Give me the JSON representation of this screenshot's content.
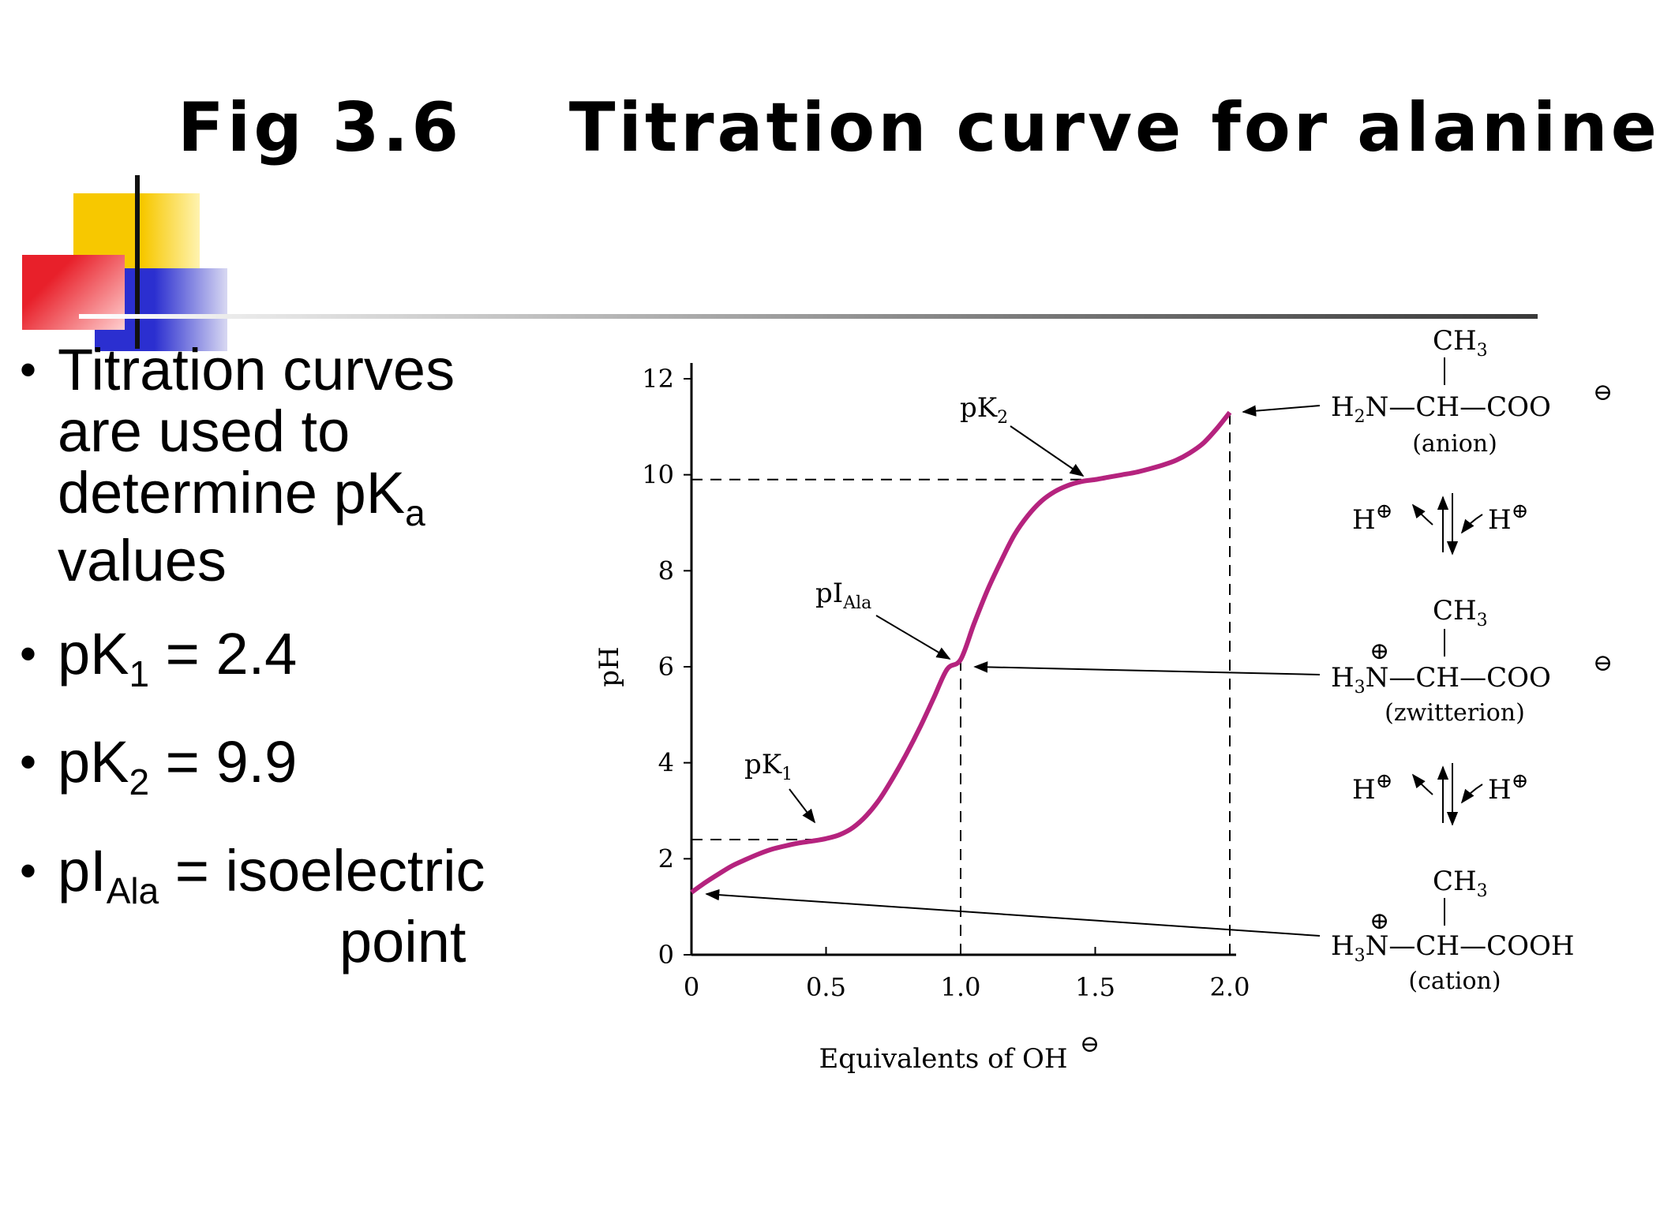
{
  "slide": {
    "title": "Fig 3.6    Titration curve for alanine",
    "bullets": {
      "b1_line1": "Titration curves",
      "b1_line2": "are used to",
      "b1_line3_main": "determine pK",
      "b1_line3_sub": "a",
      "b1_line4": "values",
      "b2_main": "pK",
      "b2_sub": "1",
      "b2_rest": " = 2.4",
      "b3_main": "pK",
      "b3_sub": "2",
      "b3_rest": " = 9.9",
      "b4_main": "pI",
      "b4_sub": "Ala",
      "b4_rest": " = isoelectric",
      "b4_line2": "point",
      "bullet_char": "•"
    },
    "colors": {
      "curve": "#b5237e",
      "deco_yellow": "#f7c800",
      "deco_red": "#e8202a",
      "deco_blue": "#2b2fd0"
    }
  },
  "chart_data": {
    "type": "line",
    "xlabel": "Equivalents of OH",
    "xlabel_charge": "⊖",
    "ylabel": "pH",
    "xlim": [
      0,
      2.0
    ],
    "ylim": [
      0,
      12
    ],
    "xticks": [
      "0",
      "0.5",
      "1.0",
      "1.5",
      "2.0"
    ],
    "xtick_values": [
      0,
      0.5,
      1.0,
      1.5,
      2.0
    ],
    "yticks": [
      "0",
      "2",
      "4",
      "6",
      "8",
      "10",
      "12"
    ],
    "ytick_values": [
      0,
      2,
      4,
      6,
      8,
      10,
      12
    ],
    "series": [
      {
        "x": [
          0,
          0.05,
          0.1,
          0.15,
          0.2,
          0.25,
          0.3,
          0.35,
          0.4,
          0.45,
          0.5,
          0.55,
          0.6,
          0.65,
          0.7,
          0.75,
          0.8,
          0.85,
          0.9,
          0.95,
          1.0,
          1.05,
          1.1,
          1.15,
          1.2,
          1.25,
          1.3,
          1.35,
          1.4,
          1.45,
          1.5,
          1.55,
          1.6,
          1.65,
          1.7,
          1.75,
          1.8,
          1.85,
          1.9,
          1.95,
          2.0
        ],
        "y": [
          1.3,
          1.5,
          1.68,
          1.85,
          1.98,
          2.1,
          2.2,
          2.27,
          2.33,
          2.37,
          2.42,
          2.5,
          2.65,
          2.9,
          3.25,
          3.7,
          4.2,
          4.75,
          5.35,
          5.95,
          6.15,
          6.9,
          7.6,
          8.2,
          8.75,
          9.15,
          9.45,
          9.65,
          9.78,
          9.86,
          9.9,
          9.95,
          10.0,
          10.05,
          10.12,
          10.2,
          10.3,
          10.45,
          10.65,
          10.95,
          11.3
        ]
      }
    ],
    "reference_lines": [
      {
        "type": "horizontal",
        "y": 9.9,
        "x_end": 1.5
      },
      {
        "type": "horizontal",
        "y": 2.4,
        "x_end": 0.5
      },
      {
        "type": "vertical",
        "x": 1.0,
        "y_end": 6.1
      },
      {
        "type": "vertical",
        "x": 2.0,
        "y_end": 11.3
      }
    ],
    "annotations": [
      {
        "label_main": "pK",
        "label_sub": "2",
        "x": 1.5,
        "y": 9.9
      },
      {
        "label_main": "pI",
        "label_sub": "Ala",
        "x": 1.0,
        "y": 6.1
      },
      {
        "label_main": "pK",
        "label_sub": "1",
        "x": 0.5,
        "y": 2.4
      }
    ],
    "species": {
      "ch3": "CH",
      "ch3_sub": "3",
      "anion": {
        "left": "H",
        "left_sub": "2",
        "left_rest": "N—CH—COO",
        "charge": "⊖",
        "name": "(anion)"
      },
      "zwitterion": {
        "left": "H",
        "left_sub": "3",
        "left_rest": "N—CH—COO",
        "charge": "⊖",
        "plus": "⊕",
        "name": "(zwitterion)"
      },
      "cation": {
        "left": "H",
        "left_sub": "3",
        "left_rest": "N—CH—COOH",
        "plus": "⊕",
        "name": "(cation)"
      },
      "proton": "H",
      "proton_charge": "⊕"
    }
  }
}
